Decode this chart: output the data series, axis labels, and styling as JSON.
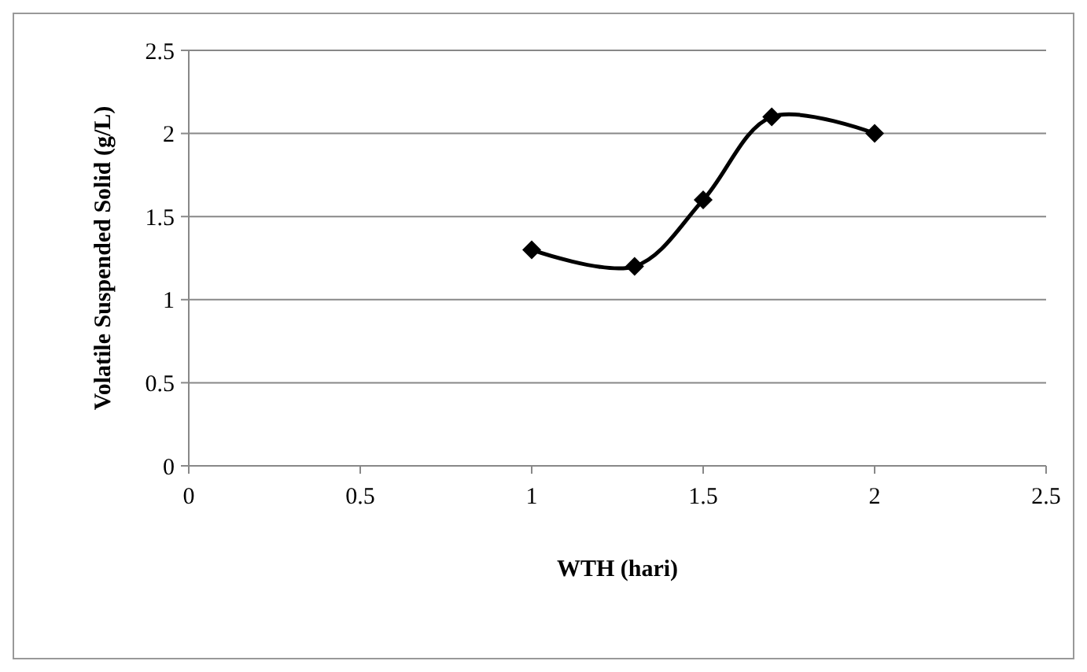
{
  "chart_data": {
    "type": "line",
    "xlabel": "WTH (hari)",
    "ylabel": "Volatile Suspended Solid (g/L)",
    "x": [
      1,
      1.3,
      1.5,
      1.7,
      2
    ],
    "series": [
      {
        "color": "#000000",
        "values": [
          1.3,
          1.2,
          1.6,
          2.1,
          2.0
        ]
      }
    ],
    "xlim": [
      0,
      2.5
    ],
    "xticks": [
      0,
      0.5,
      1,
      1.5,
      2,
      2.5
    ],
    "ylim": [
      0,
      2.5
    ],
    "yticks": [
      0,
      0.5,
      1,
      1.5,
      2,
      2.5
    ],
    "grid": "y",
    "marker": "diamond"
  }
}
